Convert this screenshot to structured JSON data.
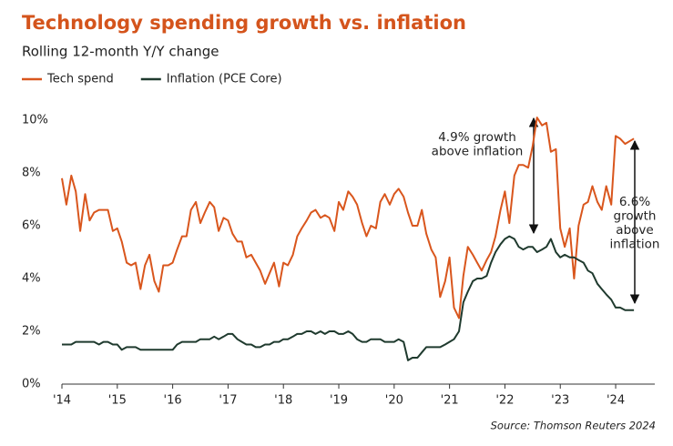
{
  "chart_data": {
    "type": "line",
    "title": "Technology spending growth vs. inflation",
    "subtitle": "Rolling 12-month Y/Y change",
    "source": "Source: Thomson Reuters 2024",
    "annotations": [
      {
        "lines": [
          "4.9% growth",
          "above inflation"
        ]
      },
      {
        "lines": [
          "6.6%",
          "growth",
          "above",
          "inflation"
        ]
      }
    ],
    "x": [
      2014,
      2014.08,
      2014.17,
      2014.25,
      2014.33,
      2014.42,
      2014.5,
      2014.58,
      2014.67,
      2014.75,
      2014.83,
      2014.92,
      2015,
      2015.08,
      2015.17,
      2015.25,
      2015.33,
      2015.42,
      2015.5,
      2015.58,
      2015.67,
      2015.75,
      2015.83,
      2015.92,
      2016,
      2016.08,
      2016.17,
      2016.25,
      2016.33,
      2016.42,
      2016.5,
      2016.58,
      2016.67,
      2016.75,
      2016.83,
      2016.92,
      2017,
      2017.08,
      2017.17,
      2017.25,
      2017.33,
      2017.42,
      2017.5,
      2017.58,
      2017.67,
      2017.75,
      2017.83,
      2017.92,
      2018,
      2018.08,
      2018.17,
      2018.25,
      2018.33,
      2018.42,
      2018.5,
      2018.58,
      2018.67,
      2018.75,
      2018.83,
      2018.92,
      2019,
      2019.08,
      2019.17,
      2019.25,
      2019.33,
      2019.42,
      2019.5,
      2019.58,
      2019.67,
      2019.75,
      2019.83,
      2019.92,
      2020,
      2020.08,
      2020.17,
      2020.25,
      2020.33,
      2020.42,
      2020.5,
      2020.58,
      2020.67,
      2020.75,
      2020.83,
      2020.92,
      2021,
      2021.08,
      2021.17,
      2021.25,
      2021.33,
      2021.42,
      2021.5,
      2021.58,
      2021.67,
      2021.75,
      2021.83,
      2021.92,
      2022,
      2022.08,
      2022.17,
      2022.25,
      2022.33,
      2022.42,
      2022.5,
      2022.58,
      2022.67,
      2022.75,
      2022.83,
      2022.92,
      2023,
      2023.08,
      2023.17,
      2023.25,
      2023.33,
      2023.42,
      2023.5,
      2023.58,
      2023.67,
      2023.75,
      2023.83,
      2023.92,
      2024,
      2024.08,
      2024.17,
      2024.25,
      2024.33
    ],
    "series": [
      {
        "name": "Tech spend",
        "color": "#d9561d",
        "values": [
          7.8,
          6.8,
          7.9,
          7.3,
          5.8,
          7.2,
          6.2,
          6.5,
          6.6,
          6.6,
          6.6,
          5.8,
          5.9,
          5.4,
          4.6,
          4.5,
          4.6,
          3.6,
          4.5,
          4.9,
          3.9,
          3.5,
          4.5,
          4.5,
          4.6,
          5.1,
          5.6,
          5.6,
          6.6,
          6.9,
          6.1,
          6.5,
          6.9,
          6.7,
          5.8,
          6.3,
          6.2,
          5.7,
          5.4,
          5.4,
          4.8,
          4.9,
          4.6,
          4.3,
          3.8,
          4.2,
          4.6,
          3.7,
          4.6,
          4.5,
          4.9,
          5.6,
          5.9,
          6.2,
          6.5,
          6.6,
          6.3,
          6.4,
          6.3,
          5.8,
          6.9,
          6.6,
          7.3,
          7.1,
          6.8,
          6.1,
          5.6,
          6.0,
          5.9,
          6.9,
          7.2,
          6.8,
          7.2,
          7.4,
          7.1,
          6.5,
          6.0,
          6.0,
          6.6,
          5.7,
          5.1,
          4.8,
          3.3,
          3.9,
          4.8,
          2.9,
          2.5,
          4.1,
          5.2,
          4.9,
          4.6,
          4.3,
          4.7,
          5.0,
          5.6,
          6.6,
          7.3,
          6.1,
          7.9,
          8.3,
          8.3,
          8.2,
          9.0,
          10.1,
          9.8,
          9.9,
          8.8,
          8.9,
          5.9,
          5.2,
          5.9,
          4.0,
          6.0,
          6.8,
          6.9,
          7.5,
          6.9,
          6.6,
          7.5,
          6.8,
          9.4,
          9.3,
          9.1,
          9.2,
          9.3
        ]
      },
      {
        "name": "Inflation (PCE Core)",
        "color": "#1f3a2e",
        "values": [
          1.5,
          1.5,
          1.5,
          1.6,
          1.6,
          1.6,
          1.6,
          1.6,
          1.5,
          1.6,
          1.6,
          1.5,
          1.5,
          1.3,
          1.4,
          1.4,
          1.4,
          1.3,
          1.3,
          1.3,
          1.3,
          1.3,
          1.3,
          1.3,
          1.3,
          1.5,
          1.6,
          1.6,
          1.6,
          1.6,
          1.7,
          1.7,
          1.7,
          1.8,
          1.7,
          1.8,
          1.9,
          1.9,
          1.7,
          1.6,
          1.5,
          1.5,
          1.4,
          1.4,
          1.5,
          1.5,
          1.6,
          1.6,
          1.7,
          1.7,
          1.8,
          1.9,
          1.9,
          2.0,
          2.0,
          1.9,
          2.0,
          1.9,
          2.0,
          2.0,
          1.9,
          1.9,
          2.0,
          1.9,
          1.7,
          1.6,
          1.6,
          1.7,
          1.7,
          1.7,
          1.6,
          1.6,
          1.6,
          1.7,
          1.6,
          0.9,
          1.0,
          1.0,
          1.2,
          1.4,
          1.4,
          1.4,
          1.4,
          1.5,
          1.6,
          1.7,
          2.0,
          3.1,
          3.5,
          3.9,
          4.0,
          4.0,
          4.1,
          4.6,
          5.0,
          5.3,
          5.5,
          5.6,
          5.5,
          5.2,
          5.1,
          5.2,
          5.2,
          5.0,
          5.1,
          5.2,
          5.5,
          5.0,
          4.8,
          4.9,
          4.8,
          4.8,
          4.7,
          4.6,
          4.3,
          4.2,
          3.8,
          3.6,
          3.4,
          3.2,
          2.9,
          2.9,
          2.8,
          2.8,
          2.8
        ]
      }
    ],
    "xlim": [
      2014,
      2024.7
    ],
    "xticks": [
      {
        "value": 2014,
        "label": "'14"
      },
      {
        "value": 2015,
        "label": "'15"
      },
      {
        "value": 2016,
        "label": "'16"
      },
      {
        "value": 2017,
        "label": "'17"
      },
      {
        "value": 2018,
        "label": "'18"
      },
      {
        "value": 2019,
        "label": "'19"
      },
      {
        "value": 2020,
        "label": "'20"
      },
      {
        "value": 2021,
        "label": "'21"
      },
      {
        "value": 2022,
        "label": "'22"
      },
      {
        "value": 2023,
        "label": "'23"
      },
      {
        "value": 2024,
        "label": "'24"
      }
    ],
    "ylim": [
      0,
      10.3
    ],
    "yticks": [
      {
        "value": 0,
        "label": "0%"
      },
      {
        "value": 2,
        "label": "2%"
      },
      {
        "value": 4,
        "label": "4%"
      },
      {
        "value": 6,
        "label": "6%"
      },
      {
        "value": 8,
        "label": "8%"
      },
      {
        "value": 10,
        "label": "10%"
      }
    ],
    "grid": false
  }
}
